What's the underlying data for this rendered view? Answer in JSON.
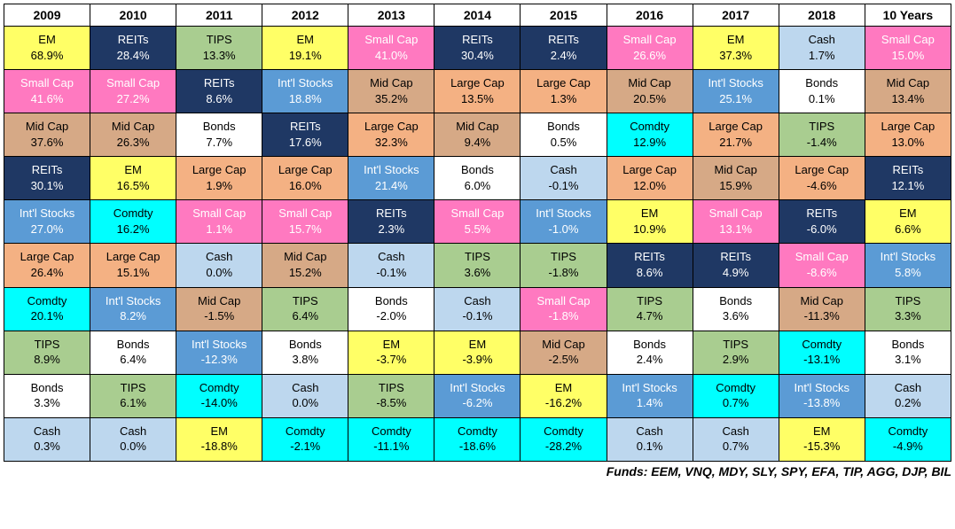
{
  "columns": [
    "2009",
    "2010",
    "2011",
    "2012",
    "2013",
    "2014",
    "2015",
    "2016",
    "2017",
    "2018",
    "10 Years"
  ],
  "footnote": "Funds: EEM, VNQ, MDY, SLY, SPY, EFA, TIP, AGG, DJP, BIL",
  "categories": {
    "EM": {
      "label": "EM",
      "bg": "#ffff66",
      "fg": "#000000"
    },
    "REITs": {
      "label": "REITs",
      "bg": "#1f3864",
      "fg": "#ffffff"
    },
    "TIPS": {
      "label": "TIPS",
      "bg": "#a9cd90",
      "fg": "#000000"
    },
    "SmallCap": {
      "label": "Small Cap",
      "bg": "#ff79c0",
      "fg": "#ffffff"
    },
    "MidCap": {
      "label": "Mid Cap",
      "bg": "#d6a986",
      "fg": "#000000"
    },
    "LargeCap": {
      "label": "Large Cap",
      "bg": "#f4b183",
      "fg": "#000000"
    },
    "IntlStocks": {
      "label": "Int'l Stocks",
      "bg": "#5b9bd5",
      "fg": "#ffffff"
    },
    "Bonds": {
      "label": "Bonds",
      "bg": "#ffffff",
      "fg": "#000000"
    },
    "Cash": {
      "label": "Cash",
      "bg": "#bdd7ee",
      "fg": "#000000"
    },
    "Comdty": {
      "label": "Comdty",
      "bg": "#00ffff",
      "fg": "#000000"
    }
  },
  "grid": [
    [
      {
        "cat": "EM",
        "v": "68.9%"
      },
      {
        "cat": "REITs",
        "v": "28.4%"
      },
      {
        "cat": "TIPS",
        "v": "13.3%"
      },
      {
        "cat": "EM",
        "v": "19.1%"
      },
      {
        "cat": "SmallCap",
        "v": "41.0%"
      },
      {
        "cat": "REITs",
        "v": "30.4%"
      },
      {
        "cat": "REITs",
        "v": "2.4%"
      },
      {
        "cat": "SmallCap",
        "v": "26.6%"
      },
      {
        "cat": "EM",
        "v": "37.3%"
      },
      {
        "cat": "Cash",
        "v": "1.7%"
      },
      {
        "cat": "SmallCap",
        "v": "15.0%"
      }
    ],
    [
      {
        "cat": "SmallCap",
        "v": "41.6%"
      },
      {
        "cat": "SmallCap",
        "v": "27.2%"
      },
      {
        "cat": "REITs",
        "v": "8.6%"
      },
      {
        "cat": "IntlStocks",
        "v": "18.8%"
      },
      {
        "cat": "MidCap",
        "v": "35.2%"
      },
      {
        "cat": "LargeCap",
        "v": "13.5%"
      },
      {
        "cat": "LargeCap",
        "v": "1.3%"
      },
      {
        "cat": "MidCap",
        "v": "20.5%"
      },
      {
        "cat": "IntlStocks",
        "v": "25.1%"
      },
      {
        "cat": "Bonds",
        "v": "0.1%"
      },
      {
        "cat": "MidCap",
        "v": "13.4%"
      }
    ],
    [
      {
        "cat": "MidCap",
        "v": "37.6%"
      },
      {
        "cat": "MidCap",
        "v": "26.3%"
      },
      {
        "cat": "Bonds",
        "v": "7.7%"
      },
      {
        "cat": "REITs",
        "v": "17.6%"
      },
      {
        "cat": "LargeCap",
        "v": "32.3%"
      },
      {
        "cat": "MidCap",
        "v": "9.4%"
      },
      {
        "cat": "Bonds",
        "v": "0.5%"
      },
      {
        "cat": "Comdty",
        "v": "12.9%"
      },
      {
        "cat": "LargeCap",
        "v": "21.7%"
      },
      {
        "cat": "TIPS",
        "v": "-1.4%"
      },
      {
        "cat": "LargeCap",
        "v": "13.0%"
      }
    ],
    [
      {
        "cat": "REITs",
        "v": "30.1%"
      },
      {
        "cat": "EM",
        "v": "16.5%"
      },
      {
        "cat": "LargeCap",
        "v": "1.9%"
      },
      {
        "cat": "LargeCap",
        "v": "16.0%"
      },
      {
        "cat": "IntlStocks",
        "v": "21.4%"
      },
      {
        "cat": "Bonds",
        "v": "6.0%"
      },
      {
        "cat": "Cash",
        "v": "-0.1%"
      },
      {
        "cat": "LargeCap",
        "v": "12.0%"
      },
      {
        "cat": "MidCap",
        "v": "15.9%"
      },
      {
        "cat": "LargeCap",
        "v": "-4.6%"
      },
      {
        "cat": "REITs",
        "v": "12.1%"
      }
    ],
    [
      {
        "cat": "IntlStocks",
        "v": "27.0%"
      },
      {
        "cat": "Comdty",
        "v": "16.2%"
      },
      {
        "cat": "SmallCap",
        "v": "1.1%"
      },
      {
        "cat": "SmallCap",
        "v": "15.7%"
      },
      {
        "cat": "REITs",
        "v": "2.3%"
      },
      {
        "cat": "SmallCap",
        "v": "5.5%"
      },
      {
        "cat": "IntlStocks",
        "v": "-1.0%"
      },
      {
        "cat": "EM",
        "v": "10.9%"
      },
      {
        "cat": "SmallCap",
        "v": "13.1%"
      },
      {
        "cat": "REITs",
        "v": "-6.0%"
      },
      {
        "cat": "EM",
        "v": "6.6%"
      }
    ],
    [
      {
        "cat": "LargeCap",
        "v": "26.4%"
      },
      {
        "cat": "LargeCap",
        "v": "15.1%"
      },
      {
        "cat": "Cash",
        "v": "0.0%"
      },
      {
        "cat": "MidCap",
        "v": "15.2%"
      },
      {
        "cat": "Cash",
        "v": "-0.1%"
      },
      {
        "cat": "TIPS",
        "v": "3.6%"
      },
      {
        "cat": "TIPS",
        "v": "-1.8%"
      },
      {
        "cat": "REITs",
        "v": "8.6%"
      },
      {
        "cat": "REITs",
        "v": "4.9%"
      },
      {
        "cat": "SmallCap",
        "v": "-8.6%"
      },
      {
        "cat": "IntlStocks",
        "v": "5.8%"
      }
    ],
    [
      {
        "cat": "Comdty",
        "v": "20.1%"
      },
      {
        "cat": "IntlStocks",
        "v": "8.2%"
      },
      {
        "cat": "MidCap",
        "v": "-1.5%"
      },
      {
        "cat": "TIPS",
        "v": "6.4%"
      },
      {
        "cat": "Bonds",
        "v": "-2.0%"
      },
      {
        "cat": "Cash",
        "v": "-0.1%"
      },
      {
        "cat": "SmallCap",
        "v": "-1.8%"
      },
      {
        "cat": "TIPS",
        "v": "4.7%"
      },
      {
        "cat": "Bonds",
        "v": "3.6%"
      },
      {
        "cat": "MidCap",
        "v": "-11.3%"
      },
      {
        "cat": "TIPS",
        "v": "3.3%"
      }
    ],
    [
      {
        "cat": "TIPS",
        "v": "8.9%"
      },
      {
        "cat": "Bonds",
        "v": "6.4%"
      },
      {
        "cat": "IntlStocks",
        "v": "-12.3%"
      },
      {
        "cat": "Bonds",
        "v": "3.8%"
      },
      {
        "cat": "EM",
        "v": "-3.7%"
      },
      {
        "cat": "EM",
        "v": "-3.9%"
      },
      {
        "cat": "MidCap",
        "v": "-2.5%"
      },
      {
        "cat": "Bonds",
        "v": "2.4%"
      },
      {
        "cat": "TIPS",
        "v": "2.9%"
      },
      {
        "cat": "Comdty",
        "v": "-13.1%"
      },
      {
        "cat": "Bonds",
        "v": "3.1%"
      }
    ],
    [
      {
        "cat": "Bonds",
        "v": "3.3%"
      },
      {
        "cat": "TIPS",
        "v": "6.1%"
      },
      {
        "cat": "Comdty",
        "v": "-14.0%"
      },
      {
        "cat": "Cash",
        "v": "0.0%"
      },
      {
        "cat": "TIPS",
        "v": "-8.5%"
      },
      {
        "cat": "IntlStocks",
        "v": "-6.2%"
      },
      {
        "cat": "EM",
        "v": "-16.2%"
      },
      {
        "cat": "IntlStocks",
        "v": "1.4%"
      },
      {
        "cat": "Comdty",
        "v": "0.7%"
      },
      {
        "cat": "IntlStocks",
        "v": "-13.8%"
      },
      {
        "cat": "Cash",
        "v": "0.2%"
      }
    ],
    [
      {
        "cat": "Cash",
        "v": "0.3%"
      },
      {
        "cat": "Cash",
        "v": "0.0%"
      },
      {
        "cat": "EM",
        "v": "-18.8%"
      },
      {
        "cat": "Comdty",
        "v": "-2.1%"
      },
      {
        "cat": "Comdty",
        "v": "-11.1%"
      },
      {
        "cat": "Comdty",
        "v": "-18.6%"
      },
      {
        "cat": "Comdty",
        "v": "-28.2%"
      },
      {
        "cat": "Cash",
        "v": "0.1%"
      },
      {
        "cat": "Cash",
        "v": "0.7%"
      },
      {
        "cat": "EM",
        "v": "-15.3%"
      },
      {
        "cat": "Comdty",
        "v": "-4.9%"
      }
    ]
  ]
}
